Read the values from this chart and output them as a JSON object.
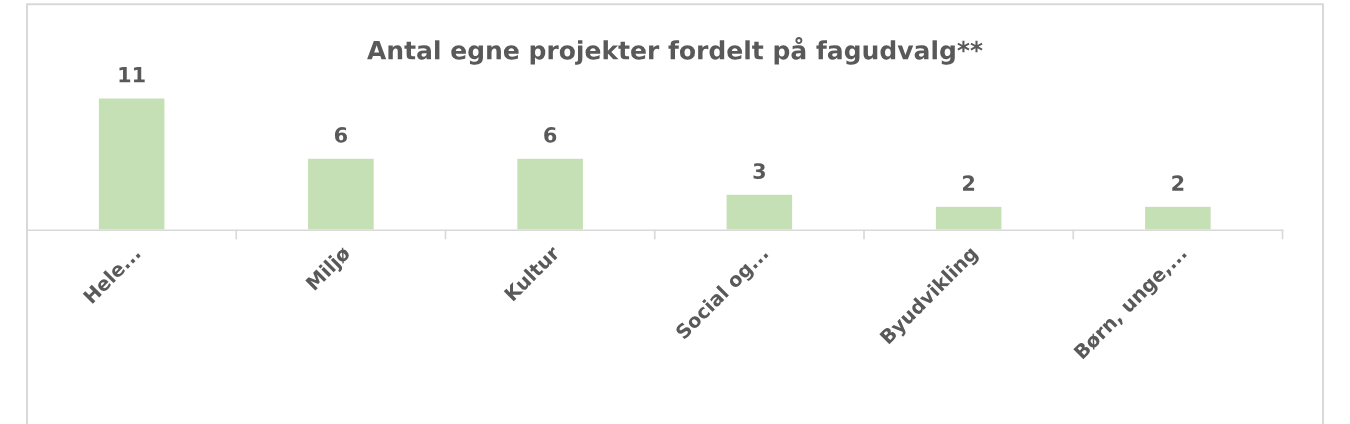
{
  "chart_data": {
    "type": "bar",
    "title": "Antal egne projekter fordelt på fagudvalg**",
    "categories": [
      "Hele...",
      "Miljø",
      "Kultur",
      "Social og...",
      "Byudvikling",
      "Børn, unge,..."
    ],
    "values": [
      11,
      6,
      6,
      3,
      2,
      2
    ],
    "color": "#c5e0b4",
    "data_labels": true,
    "grid": false,
    "legend": false
  }
}
